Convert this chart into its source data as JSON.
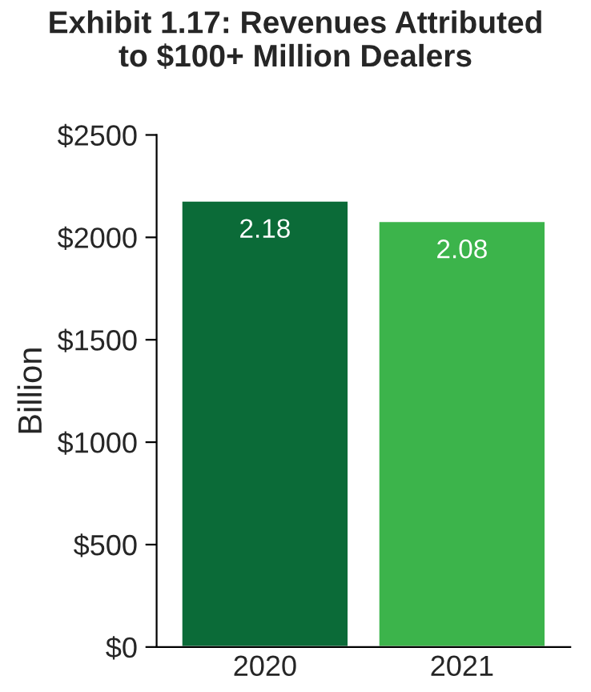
{
  "chart_data": {
    "type": "bar",
    "title": "Exhibit 1.17: Revenues Attributed\nto $100+ Million Dealers",
    "ylabel": "Billion",
    "categories": [
      "2020",
      "2021"
    ],
    "values": [
      2180,
      2080
    ],
    "colors": [
      "#0b6b38",
      "#3cb44b"
    ],
    "annotations": [
      {
        "text": "2.18",
        "x": "2020",
        "y": 2180
      },
      {
        "text": "2.08",
        "x": "2021",
        "y": 2080
      }
    ],
    "ylim": [
      0,
      2500
    ],
    "yticks": [
      {
        "value": 0,
        "label": "$0"
      },
      {
        "value": 500,
        "label": "$500"
      },
      {
        "value": 1000,
        "label": "$1000"
      },
      {
        "value": 1500,
        "label": "$1500"
      },
      {
        "value": 2000,
        "label": "$2000"
      },
      {
        "value": 2500,
        "label": "$2500"
      }
    ],
    "grid": false,
    "legend": false
  }
}
